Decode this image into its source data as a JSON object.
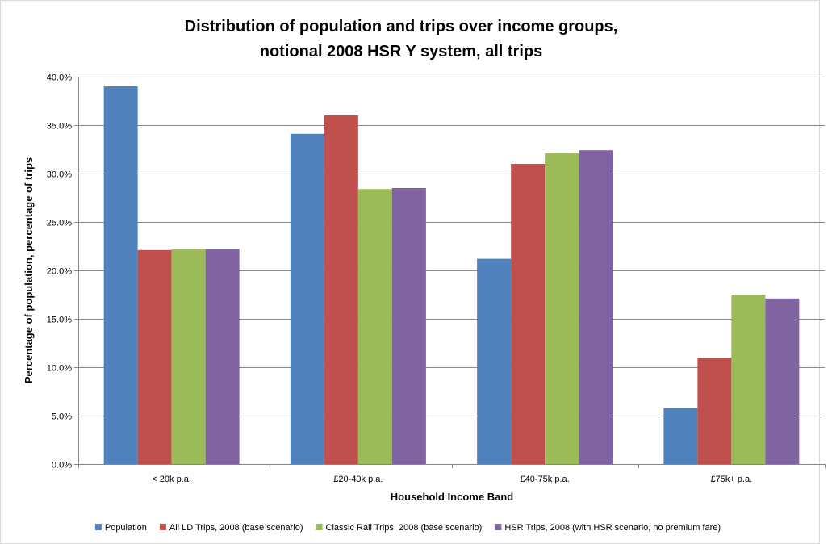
{
  "chart_data": {
    "type": "bar",
    "title_lines": [
      "Distribution of population and trips over income groups,",
      "notional 2008 HSR Y system, all trips"
    ],
    "xlabel": "Household Income Band",
    "ylabel": "Percentage of population, percentage of trips",
    "categories": [
      "< 20k p.a.",
      "£20-40k p.a.",
      "£40-75k p.a.",
      "£75k+ p.a."
    ],
    "ylim": [
      0,
      40
    ],
    "ytick_step": 5,
    "ytick_format": "percent_1dp",
    "grid": true,
    "legend_position": "bottom",
    "series": [
      {
        "name": "Population",
        "color": "#4F81BD",
        "values": [
          39.0,
          34.1,
          21.2,
          5.8
        ]
      },
      {
        "name": "All LD Trips, 2008 (base scenario)",
        "color": "#C0504D",
        "values": [
          22.1,
          36.0,
          31.0,
          11.0
        ]
      },
      {
        "name": "Classic Rail Trips, 2008 (base scenario)",
        "color": "#9BBB59",
        "values": [
          22.2,
          28.4,
          32.1,
          17.5
        ]
      },
      {
        "name": "HSR Trips, 2008 (with HSR scenario, no premium fare)",
        "color": "#8064A2",
        "values": [
          22.2,
          28.5,
          32.4,
          17.1
        ]
      }
    ]
  }
}
